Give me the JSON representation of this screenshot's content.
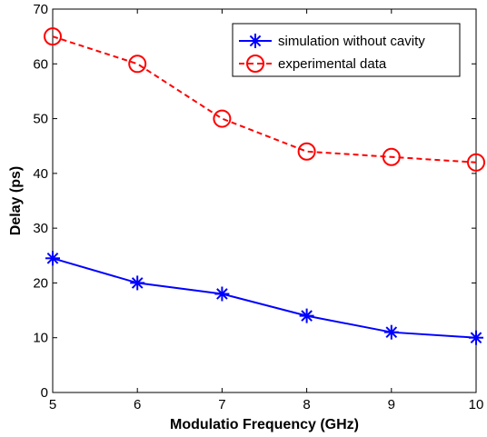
{
  "chart_data": {
    "type": "line",
    "title": "",
    "xlabel": "Modulatio Frequency (GHz)",
    "ylabel": "Delay (ps)",
    "x": [
      5,
      6,
      7,
      8,
      9,
      10
    ],
    "xlim": [
      5,
      10
    ],
    "ylim": [
      0,
      70
    ],
    "xticks": [
      "5",
      "6",
      "7",
      "8",
      "9",
      "10"
    ],
    "yticks": [
      "0",
      "10",
      "20",
      "30",
      "40",
      "50",
      "60",
      "70"
    ],
    "grid": false,
    "legend_position": "top-right",
    "series": [
      {
        "name": "simulation without cavity",
        "values": [
          24.5,
          20,
          18,
          14,
          11,
          10
        ],
        "color": "#0000ff",
        "line_style": "solid",
        "marker": "asterisk"
      },
      {
        "name": "experimental data",
        "values": [
          65,
          60,
          50,
          44,
          43,
          42
        ],
        "color": "#ff0000",
        "line_style": "dashed",
        "marker": "circle"
      }
    ]
  }
}
